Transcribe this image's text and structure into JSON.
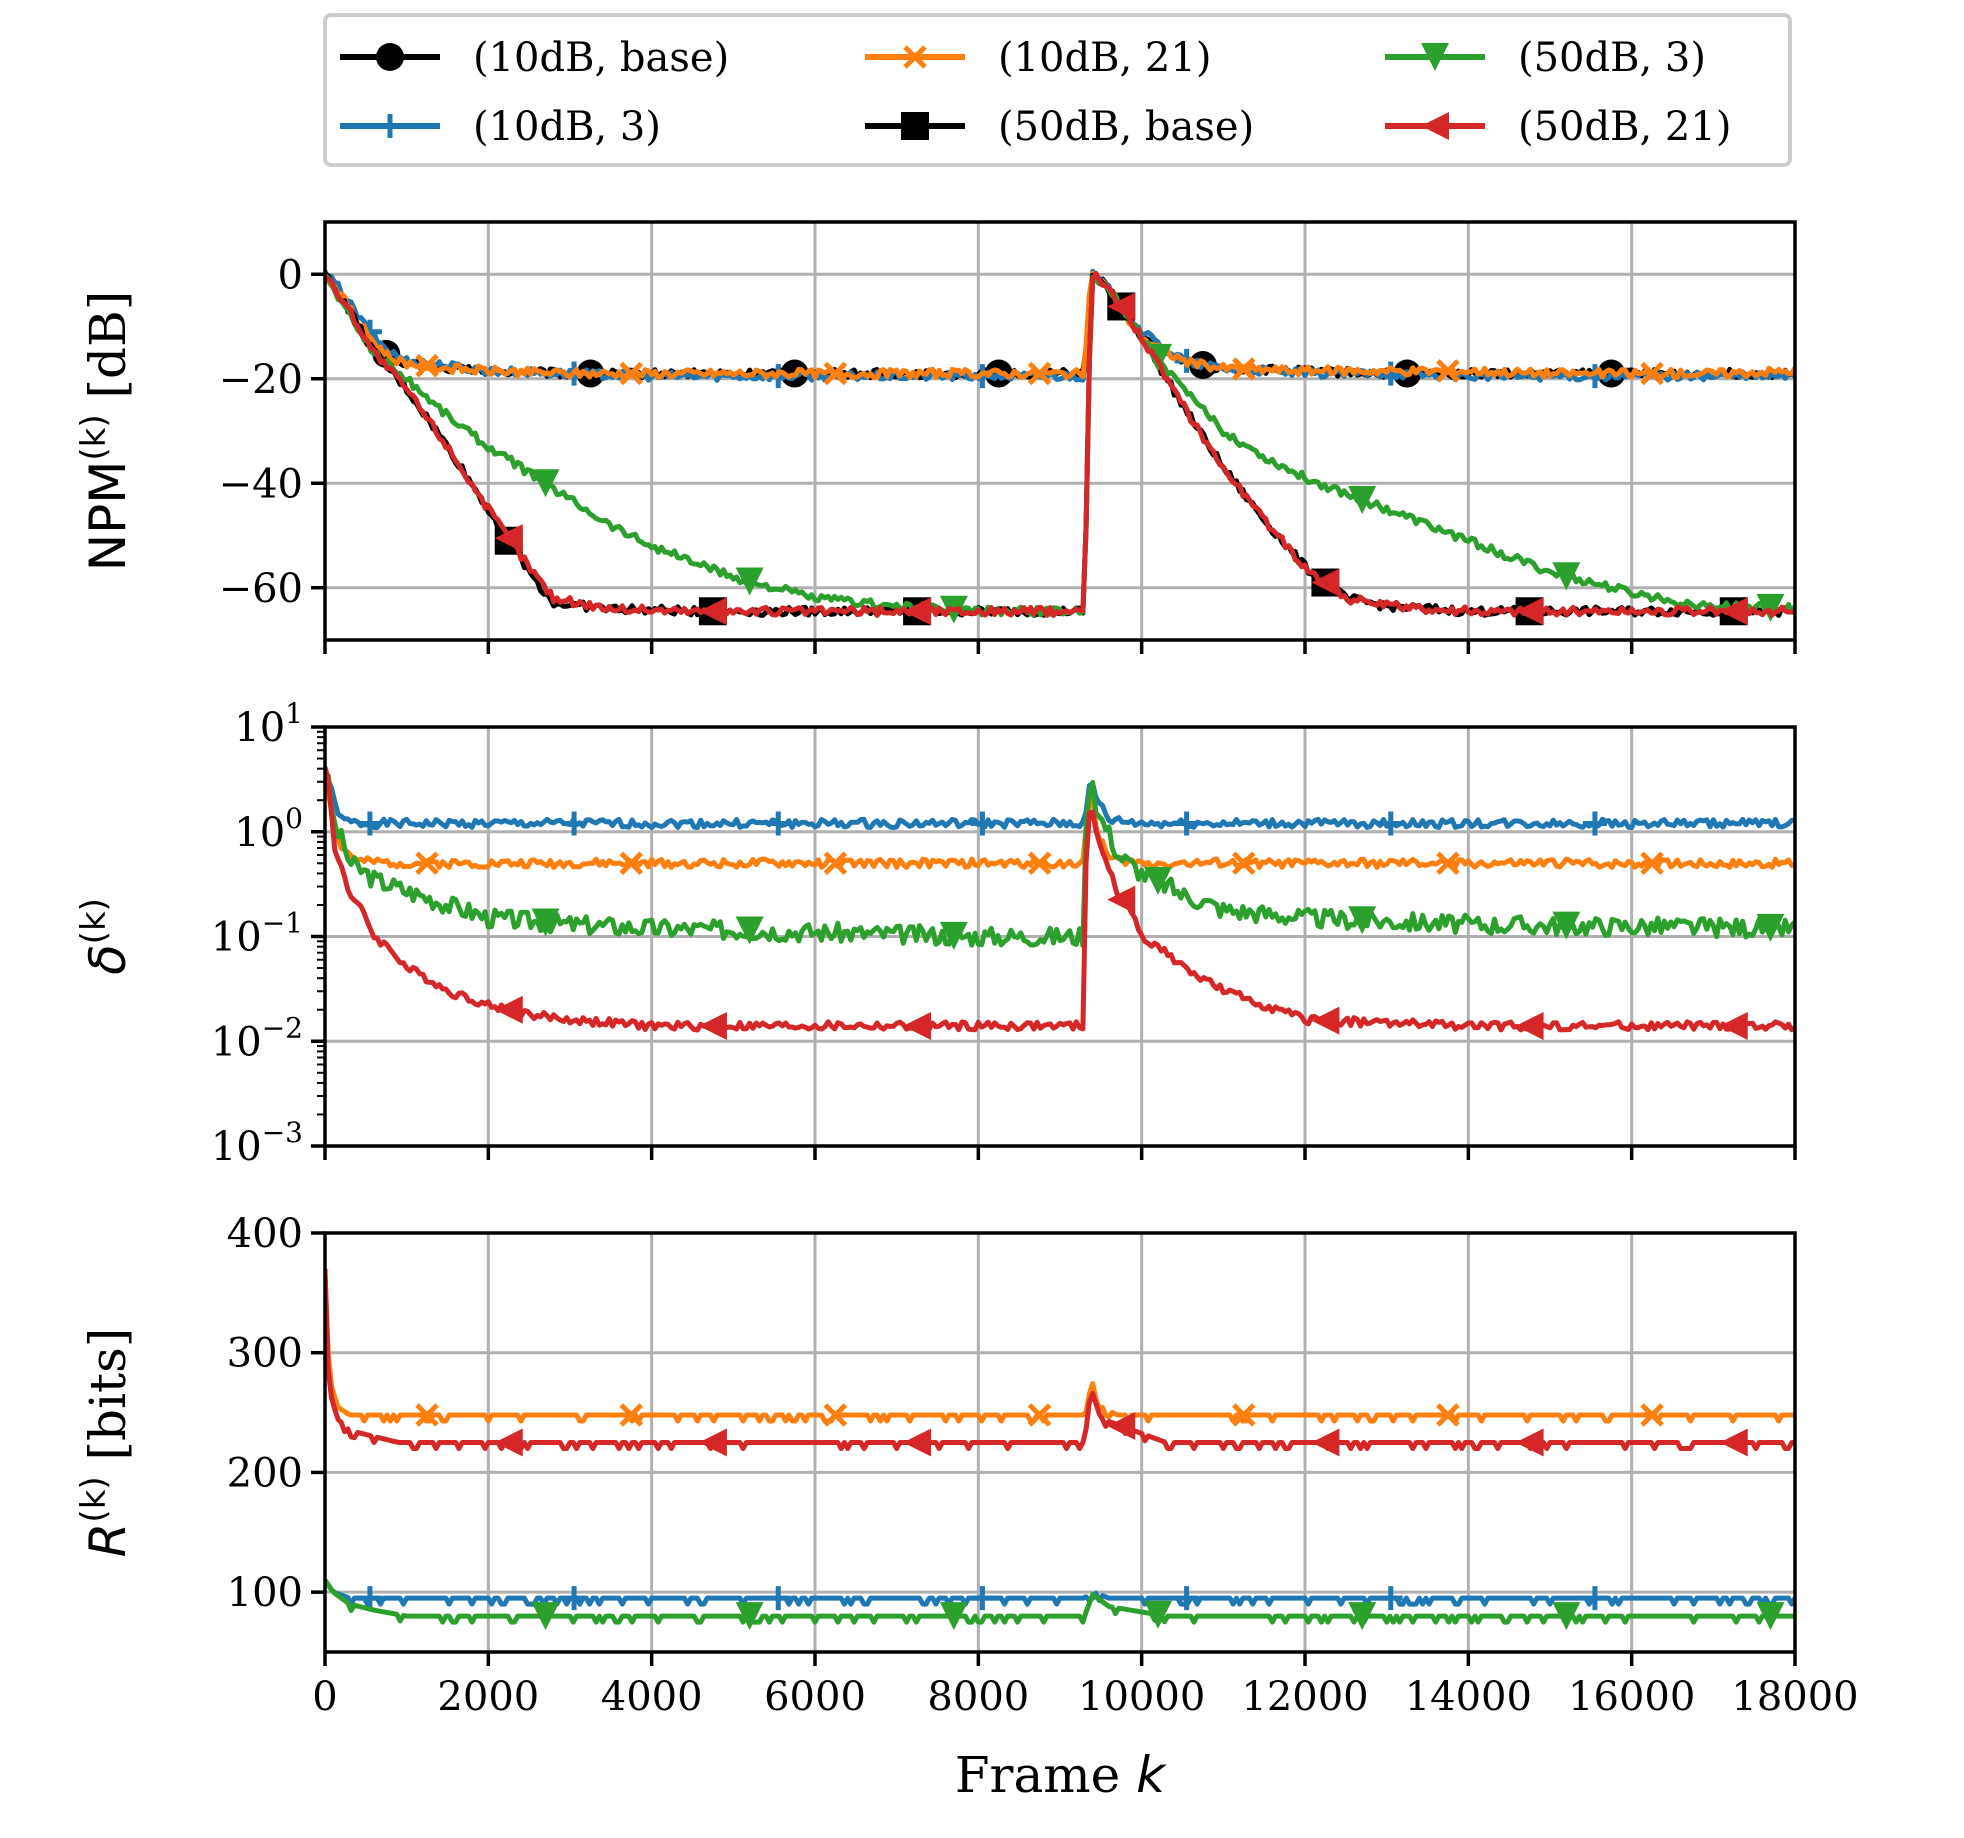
{
  "chart_data": {
    "type": "line",
    "legend": {
      "placement": "top-center",
      "entries": [
        {
          "label": "(10dB, base)",
          "color": "#000000",
          "marker": "circle"
        },
        {
          "label": "(10dB, 21)",
          "color": "#ff7f0e",
          "marker": "x"
        },
        {
          "label": "(50dB, 3)",
          "color": "#2ca02c",
          "marker": "triangle-down"
        },
        {
          "label": "(10dB, 3)",
          "color": "#1f77b4",
          "marker": "plus"
        },
        {
          "label": "(50dB, base)",
          "color": "#000000",
          "marker": "square"
        },
        {
          "label": "(50dB, 21)",
          "color": "#d62728",
          "marker": "triangle-left"
        }
      ]
    },
    "x_axis": {
      "label_text": "Frame ",
      "label_var": "k",
      "xlim": [
        0,
        18000
      ],
      "ticks": [
        0,
        2000,
        4000,
        6000,
        8000,
        10000,
        12000,
        14000,
        16000,
        18000
      ],
      "tick_labels": [
        "0",
        "2000",
        "4000",
        "6000",
        "8000",
        "10000",
        "12000",
        "14000",
        "16000",
        "18000"
      ]
    },
    "grid": true,
    "panels": [
      {
        "id": "npm",
        "ylabel_pre": "NPM",
        "ylabel_sup": "(k)",
        "ylabel_post": " [dB]",
        "scale": "linear",
        "ylim": [
          -70,
          10
        ],
        "yticks": [
          0,
          -20,
          -40,
          -60
        ],
        "ytick_labels": [
          "0",
          "−20",
          "−40",
          "−60"
        ],
        "series": [
          {
            "name": "(10dB, base)",
            "color": "#000000",
            "marker": "circle",
            "x": [
              0,
              200,
              400,
              600,
              800,
              1000,
              1500,
              2000,
              3000,
              4000,
              5000,
              6000,
              7000,
              8000,
              9300,
              9380,
              9450,
              9600,
              9800,
              10000,
              10300,
              10600,
              11000,
              12000,
              13000,
              14000,
              15000,
              16000,
              17000,
              18000
            ],
            "y": [
              0,
              -4,
              -9,
              -13,
              -16,
              -17,
              -18,
              -18.5,
              -19,
              -19,
              -19,
              -19,
              -19,
              -19,
              -19,
              0,
              -0.5,
              -3,
              -8,
              -12,
              -15,
              -17,
              -18,
              -18.5,
              -19,
              -19,
              -19,
              -19,
              -19,
              -19
            ]
          },
          {
            "name": "(10dB, 3)",
            "color": "#1f77b4",
            "marker": "plus",
            "x": [
              0,
              200,
              400,
              600,
              800,
              1000,
              1500,
              2000,
              3000,
              4000,
              5000,
              6000,
              7000,
              8000,
              9300,
              9380,
              9450,
              9600,
              9800,
              10000,
              10300,
              10600,
              11000,
              12000,
              13000,
              14000,
              15000,
              16000,
              17000,
              18000
            ],
            "y": [
              0,
              -3,
              -8,
              -12,
              -15,
              -16.5,
              -17.5,
              -18.5,
              -19,
              -19.5,
              -19.5,
              -19.5,
              -19.5,
              -19.5,
              -19.5,
              0,
              -0.5,
              -3,
              -7,
              -11,
              -14.5,
              -17,
              -18,
              -19,
              -19,
              -19.5,
              -19.5,
              -19.5,
              -19.5,
              -19.5
            ]
          },
          {
            "name": "(10dB, 21)",
            "color": "#ff7f0e",
            "marker": "x",
            "x": [
              0,
              200,
              400,
              600,
              800,
              1000,
              1500,
              2000,
              3000,
              4000,
              5000,
              6000,
              7000,
              8000,
              9300,
              9380,
              9450,
              9600,
              9800,
              10000,
              10300,
              10600,
              11000,
              12000,
              13000,
              14000,
              15000,
              16000,
              17000,
              18000
            ],
            "y": [
              0,
              -4,
              -9,
              -13,
              -16,
              -17,
              -18,
              -18.5,
              -19,
              -19,
              -19,
              -19,
              -19,
              -19,
              -19,
              0,
              -0.5,
              -3,
              -8,
              -12,
              -15,
              -17,
              -18,
              -18.5,
              -18.5,
              -18.5,
              -19,
              -19,
              -19,
              -18.5
            ]
          },
          {
            "name": "(50dB, base)",
            "color": "#000000",
            "marker": "square",
            "x": [
              0,
              300,
              600,
              1000,
              1500,
              2000,
              2500,
              2800,
              3500,
              4500,
              6000,
              7000,
              8000,
              9300,
              9380,
              9450,
              9700,
              10000,
              10500,
              11000,
              11500,
              12000,
              12500,
              13000,
              14000,
              15000,
              16000,
              17000,
              18000
            ],
            "y": [
              0,
              -7,
              -15,
              -22,
              -33,
              -45,
              -57,
              -63,
              -64,
              -64.5,
              -64.5,
              -64.5,
              -64.5,
              -64.5,
              0,
              -0.5,
              -5,
              -12,
              -25,
              -37,
              -47,
              -56,
              -62,
              -63.5,
              -64.5,
              -64.5,
              -64.5,
              -64.5,
              -64.5
            ]
          },
          {
            "name": "(50dB, 3)",
            "color": "#2ca02c",
            "marker": "triangle-down",
            "x": [
              0,
              300,
              600,
              1000,
              1500,
              2000,
              2500,
              3000,
              3500,
              4000,
              4500,
              5000,
              5500,
              6000,
              7000,
              8000,
              9300,
              9380,
              9450,
              9700,
              10000,
              10500,
              11000,
              11500,
              12000,
              12500,
              13000,
              13500,
              14000,
              14500,
              15000,
              15500,
              16000,
              16500,
              17000,
              18000
            ],
            "y": [
              0,
              -8,
              -15,
              -20,
              -27,
              -33,
              -38,
              -43,
              -48,
              -52,
              -55,
              -58,
              -60,
              -62,
              -63.5,
              -64.5,
              -64.5,
              0,
              -0.5,
              -5,
              -12,
              -22,
              -30,
              -35,
              -39,
              -42,
              -45,
              -48,
              -51,
              -54,
              -57,
              -59,
              -61,
              -62.5,
              -63.5,
              -64
            ]
          },
          {
            "name": "(50dB, 21)",
            "color": "#d62728",
            "marker": "triangle-left",
            "x": [
              0,
              300,
              600,
              1000,
              1500,
              2000,
              2500,
              2800,
              3500,
              4500,
              6000,
              7000,
              8000,
              9300,
              9380,
              9450,
              9700,
              10000,
              10500,
              11000,
              11500,
              12000,
              12500,
              13000,
              14000,
              15000,
              16000,
              17000,
              18000
            ],
            "y": [
              0,
              -7,
              -15,
              -22,
              -33,
              -45,
              -56,
              -62,
              -64,
              -64.5,
              -64.5,
              -64.5,
              -64.5,
              -64.5,
              0,
              -0.5,
              -5,
              -12,
              -25,
              -37,
              -47,
              -56,
              -62,
              -63.5,
              -64.5,
              -64.5,
              -64.5,
              -64.5,
              -64.5
            ]
          }
        ]
      },
      {
        "id": "delta",
        "ylabel_pre": "δ",
        "ylabel_sup": "(k)",
        "ylabel_post": "",
        "scale": "log",
        "ylim": [
          0.001,
          10
        ],
        "yticks": [
          10,
          1,
          0.1,
          0.01,
          0.001
        ],
        "ytick_base": "10",
        "ytick_exps": [
          "1",
          "0",
          "−1",
          "−2",
          "−3"
        ],
        "series": [
          {
            "name": "(10dB, 3)",
            "color": "#1f77b4",
            "marker": "plus",
            "x": [
              0,
              100,
              200,
              400,
              1000,
              4000,
              8000,
              9300,
              9380,
              9450,
              9600,
              10000,
              14000,
              18000
            ],
            "y": [
              4,
              2,
              1.3,
              1.2,
              1.2,
              1.2,
              1.2,
              1.2,
              3,
              2,
              1.3,
              1.2,
              1.2,
              1.2
            ]
          },
          {
            "name": "(10dB, 21)",
            "color": "#ff7f0e",
            "marker": "x",
            "x": [
              0,
              100,
              200,
              400,
              1000,
              4000,
              8000,
              9300,
              9380,
              9450,
              9600,
              10000,
              14000,
              18000
            ],
            "y": [
              3.5,
              1.2,
              0.7,
              0.52,
              0.5,
              0.5,
              0.5,
              0.5,
              2.5,
              1,
              0.55,
              0.5,
              0.5,
              0.5
            ]
          },
          {
            "name": "(50dB, 3)",
            "color": "#2ca02c",
            "marker": "triangle-down",
            "x": [
              0,
              100,
              300,
              600,
              1000,
              1500,
              2000,
              3000,
              4000,
              6000,
              8000,
              9300,
              9380,
              9450,
              9700,
              10000,
              10500,
              11000,
              12000,
              14000,
              18000
            ],
            "y": [
              4,
              1.2,
              0.5,
              0.35,
              0.27,
              0.2,
              0.15,
              0.13,
              0.12,
              0.11,
              0.1,
              0.1,
              3.8,
              1.5,
              0.6,
              0.4,
              0.25,
              0.18,
              0.15,
              0.13,
              0.12
            ]
          },
          {
            "name": "(50dB, 21)",
            "color": "#d62728",
            "marker": "triangle-left",
            "x": [
              0,
              100,
              300,
              600,
              1000,
              1500,
              2000,
              2500,
              3000,
              4000,
              6000,
              8000,
              9300,
              9380,
              9450,
              9700,
              10000,
              10500,
              11000,
              11500,
              12000,
              14000,
              18000
            ],
            "y": [
              4.5,
              0.7,
              0.25,
              0.1,
              0.05,
              0.03,
              0.022,
              0.018,
              0.016,
              0.014,
              0.014,
              0.014,
              0.014,
              2,
              0.8,
              0.25,
              0.1,
              0.05,
              0.03,
              0.022,
              0.016,
              0.014,
              0.014
            ]
          }
        ]
      },
      {
        "id": "rate",
        "ylabel_pre": "R",
        "ylabel_sup": "(k)",
        "ylabel_post": " [bits]",
        "scale": "linear",
        "ylim": [
          50,
          400
        ],
        "yticks": [
          400,
          300,
          200,
          100
        ],
        "ytick_labels": [
          "400",
          "300",
          "200",
          "100"
        ],
        "series": [
          {
            "name": "(10dB, 21)",
            "color": "#ff7f0e",
            "marker": "x",
            "x": [
              0,
              50,
              150,
              300,
              9300,
              9380,
              9500,
              9700,
              18000
            ],
            "y": [
              370,
              280,
              255,
              248,
              248,
              278,
              255,
              248,
              248
            ]
          },
          {
            "name": "(50dB, 21)",
            "color": "#d62728",
            "marker": "triangle-left",
            "x": [
              0,
              50,
              150,
              300,
              600,
              900,
              9300,
              9380,
              9500,
              9700,
              10300,
              18000
            ],
            "y": [
              370,
              270,
              245,
              235,
              230,
              225,
              225,
              270,
              245,
              240,
              225,
              225
            ]
          },
          {
            "name": "(10dB, 3)",
            "color": "#1f77b4",
            "marker": "plus",
            "x": [
              0,
              100,
              300,
              9300,
              9400,
              9600,
              18000
            ],
            "y": [
              110,
              100,
              95,
              95,
              100,
              95,
              95
            ]
          },
          {
            "name": "(50dB, 3)",
            "color": "#2ca02c",
            "marker": "triangle-down",
            "x": [
              0,
              100,
              300,
              600,
              1000,
              9300,
              9400,
              9600,
              10300,
              18000
            ],
            "y": [
              110,
              100,
              90,
              85,
              80,
              80,
              98,
              88,
              80,
              80
            ]
          }
        ]
      }
    ]
  }
}
